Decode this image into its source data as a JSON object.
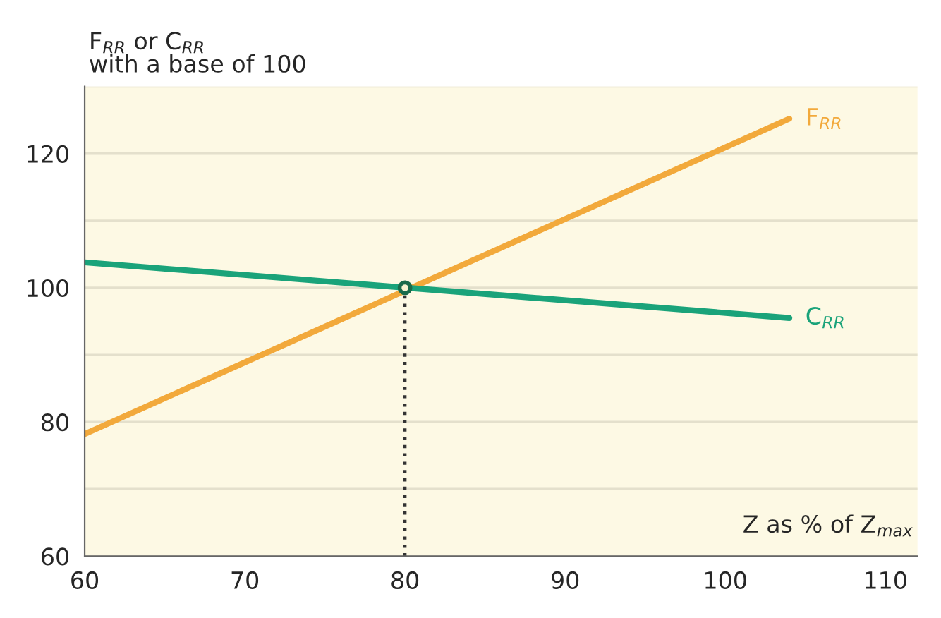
{
  "chart_data": {
    "type": "line",
    "ylabel": "F$_{RR}$ or C$_{RR}$\nwith a base of 100",
    "xlabel": "Z as % of Z$_{max}$",
    "xlim": [
      60,
      112
    ],
    "xticks": [
      60,
      70,
      80,
      90,
      100,
      110
    ],
    "ylim": [
      60,
      130
    ],
    "yticks": [
      60,
      {
        "value": 70,
        "label": null
      },
      80,
      {
        "value": 90,
        "label": null
      },
      100,
      {
        "value": 110,
        "label": null
      },
      120,
      {
        "value": 130,
        "label": null
      }
    ],
    "grid": "y",
    "legend": false,
    "series": [
      {
        "name": "F$_{RR}$",
        "color": "#f2a93b",
        "x": [
          60,
          104
        ],
        "values": [
          78.2,
          125.2
        ]
      },
      {
        "name": "C$_{RR}$",
        "color": "#1aa37a",
        "x": [
          60,
          104
        ],
        "values": [
          103.8,
          95.5
        ]
      },
      {
        "type": "line",
        "color": "#333333",
        "x": [
          80,
          80
        ],
        "values": [
          60,
          100
        ],
        "line_style": "dotted"
      },
      {
        "type": "scatter",
        "color": "#1a6b4a",
        "x": [
          80
        ],
        "values": [
          100
        ],
        "marker": "circle"
      }
    ]
  }
}
